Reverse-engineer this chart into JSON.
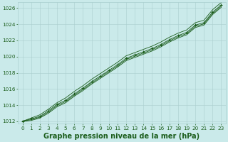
{
  "title": "Graphe pression niveau de la mer (hPa)",
  "x_values": [
    0,
    1,
    2,
    3,
    4,
    5,
    6,
    7,
    8,
    9,
    10,
    11,
    12,
    13,
    14,
    15,
    16,
    17,
    18,
    19,
    20,
    21,
    22,
    23
  ],
  "y_main": [
    1012.0,
    1012.3,
    1012.6,
    1013.3,
    1014.1,
    1014.6,
    1015.4,
    1016.1,
    1016.9,
    1017.6,
    1018.3,
    1019.0,
    1019.8,
    1020.2,
    1020.6,
    1021.0,
    1021.5,
    1022.1,
    1022.6,
    1023.0,
    1023.9,
    1024.2,
    1025.5,
    1026.4
  ],
  "y_upper": [
    1012.0,
    1012.4,
    1012.8,
    1013.5,
    1014.3,
    1014.9,
    1015.7,
    1016.4,
    1017.2,
    1017.9,
    1018.6,
    1019.3,
    1020.1,
    1020.5,
    1020.9,
    1021.3,
    1021.8,
    1022.4,
    1022.9,
    1023.3,
    1024.2,
    1024.5,
    1025.8,
    1026.7
  ],
  "y_lower": [
    1012.0,
    1012.1,
    1012.4,
    1013.0,
    1013.8,
    1014.3,
    1015.1,
    1015.8,
    1016.6,
    1017.3,
    1018.0,
    1018.7,
    1019.5,
    1019.9,
    1020.3,
    1020.7,
    1021.2,
    1021.8,
    1022.3,
    1022.7,
    1023.6,
    1023.9,
    1025.2,
    1026.1
  ],
  "y_extra": [
    1012.0,
    1012.2,
    1012.5,
    1013.15,
    1013.95,
    1014.45,
    1015.25,
    1015.95,
    1016.75,
    1017.45,
    1018.15,
    1018.85,
    1019.65,
    1020.05,
    1020.45,
    1020.85,
    1021.35,
    1021.95,
    1022.45,
    1022.85,
    1023.75,
    1024.05,
    1025.35,
    1026.25
  ],
  "ylim": [
    1012,
    1026
  ],
  "yticks": [
    1012,
    1014,
    1016,
    1018,
    1020,
    1022,
    1024,
    1026
  ],
  "xlim_min": -0.5,
  "xlim_max": 23.5,
  "xticks": [
    0,
    1,
    2,
    3,
    4,
    5,
    6,
    7,
    8,
    9,
    10,
    11,
    12,
    13,
    14,
    15,
    16,
    17,
    18,
    19,
    20,
    21,
    22,
    23
  ],
  "line_color": "#1a5c1a",
  "marker": "+",
  "bg_color": "#caeaea",
  "grid_color": "#aacfcf",
  "title_color": "#1a5c1a",
  "title_fontsize": 7.0,
  "tick_fontsize": 5.2
}
